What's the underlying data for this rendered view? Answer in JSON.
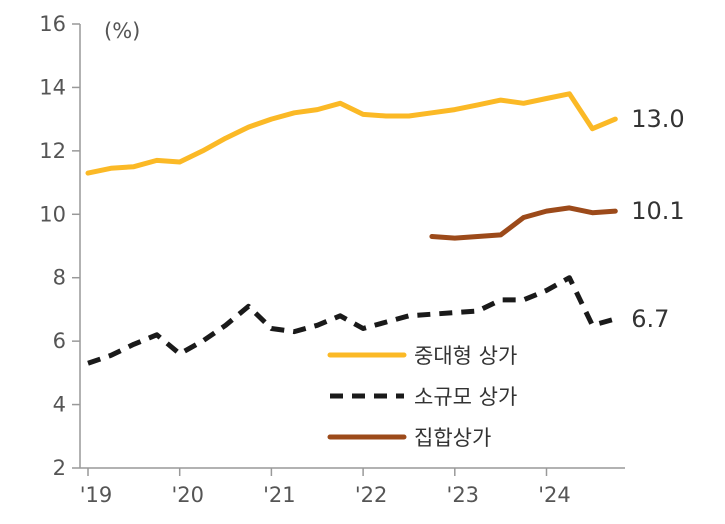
{
  "chart_data": {
    "type": "line",
    "unit_label": "(%)",
    "y_ticks": [
      2,
      4,
      6,
      8,
      10,
      12,
      14,
      16
    ],
    "ylim": [
      2,
      16
    ],
    "x_ticks": [
      "'19",
      "'20",
      "'21",
      "'22",
      "'23",
      "'24"
    ],
    "xlim": [
      2019.0,
      2025.0
    ],
    "grid": false,
    "legend_position": "bottom-right",
    "series": [
      {
        "name": "중대형 상가",
        "style": "solid",
        "color": "#FBB926",
        "end_label": "13.0",
        "x": [
          2019.0,
          2019.25,
          2019.5,
          2019.75,
          2020.0,
          2020.25,
          2020.5,
          2020.75,
          2021.0,
          2021.25,
          2021.5,
          2021.75,
          2022.0,
          2022.25,
          2022.5,
          2022.75,
          2023.0,
          2023.25,
          2023.5,
          2023.75,
          2024.0,
          2024.25,
          2024.5,
          2024.75
        ],
        "values": [
          11.3,
          11.45,
          11.5,
          11.7,
          11.65,
          12.0,
          12.4,
          12.75,
          13.0,
          13.2,
          13.3,
          13.5,
          13.15,
          13.1,
          13.1,
          13.2,
          13.3,
          13.45,
          13.6,
          13.5,
          13.65,
          13.8,
          12.7,
          13.0
        ]
      },
      {
        "name": "소규모 상가",
        "style": "dashed",
        "color": "#1A1A1A",
        "end_label": "6.7",
        "x": [
          2019.0,
          2019.25,
          2019.5,
          2019.75,
          2020.0,
          2020.25,
          2020.5,
          2020.75,
          2021.0,
          2021.25,
          2021.5,
          2021.75,
          2022.0,
          2022.25,
          2022.5,
          2022.75,
          2023.0,
          2023.25,
          2023.5,
          2023.75,
          2024.0,
          2024.25,
          2024.5,
          2024.75
        ],
        "values": [
          5.3,
          5.55,
          5.9,
          6.2,
          5.6,
          6.0,
          6.5,
          7.1,
          6.4,
          6.3,
          6.5,
          6.8,
          6.4,
          6.6,
          6.8,
          6.85,
          6.9,
          6.95,
          7.3,
          7.3,
          7.6,
          8.0,
          6.5,
          6.7
        ]
      },
      {
        "name": "집합상가",
        "style": "solid",
        "color": "#9C4A1A",
        "end_label": "10.1",
        "x": [
          2022.75,
          2023.0,
          2023.25,
          2023.5,
          2023.75,
          2024.0,
          2024.25,
          2024.5,
          2024.75
        ],
        "values": [
          9.3,
          9.25,
          9.3,
          9.35,
          9.9,
          10.1,
          10.2,
          10.05,
          10.1
        ]
      }
    ]
  }
}
